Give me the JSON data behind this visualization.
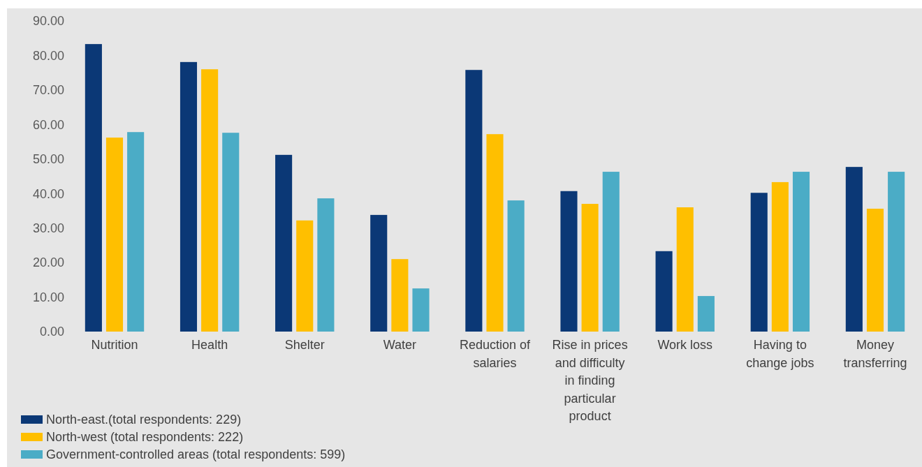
{
  "chart_data": {
    "type": "bar",
    "categories": [
      "Nutrition",
      "Health",
      "Shelter",
      "Water",
      "Reduction of salaries",
      "Rise in prices and difficulty in finding particular product",
      "Work loss",
      "Having to change jobs",
      "Money transferring"
    ],
    "series": [
      {
        "name": "North-east.(total respondents: 229)",
        "color": "#0b3876",
        "values": [
          83.3,
          78.1,
          51.2,
          33.8,
          75.8,
          40.7,
          23.3,
          40.2,
          47.7
        ]
      },
      {
        "name": "North-west (total respondents: 222)",
        "color": "#ffbf00",
        "values": [
          56.2,
          76.0,
          32.2,
          21.0,
          57.2,
          37.0,
          36.0,
          43.3,
          35.6
        ]
      },
      {
        "name": "Government-controlled areas (total respondents: 599)",
        "color": "#4bacc6",
        "values": [
          57.8,
          57.6,
          38.6,
          12.5,
          38.0,
          46.3,
          10.3,
          46.3,
          46.3
        ]
      }
    ],
    "ylim": [
      0,
      90
    ],
    "yticks": [
      {
        "value": 0,
        "label": "0.00"
      },
      {
        "value": 10,
        "label": "10.00"
      },
      {
        "value": 20,
        "label": "20.00"
      },
      {
        "value": 30,
        "label": "30.00"
      },
      {
        "value": 40,
        "label": "40.00"
      },
      {
        "value": 50,
        "label": "50.00"
      },
      {
        "value": 60,
        "label": "60.00"
      },
      {
        "value": 70,
        "label": "70.00"
      },
      {
        "value": 80,
        "label": "80.00"
      },
      {
        "value": 90,
        "label": "90.00"
      }
    ],
    "grid": false,
    "legend": "bottom left"
  }
}
